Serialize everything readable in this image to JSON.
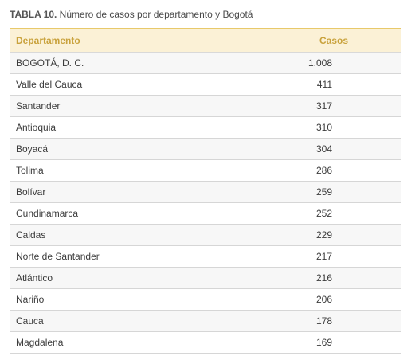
{
  "caption": {
    "label": "TABLA 10.",
    "text": " Número de casos por departamento y Bogotá"
  },
  "table": {
    "headers": {
      "department": "Departamento",
      "cases": "Casos"
    },
    "rows": [
      {
        "department": "BOGOTÁ, D. C.",
        "cases": "1.008"
      },
      {
        "department": "Valle del Cauca",
        "cases": "411"
      },
      {
        "department": "Santander",
        "cases": "317"
      },
      {
        "department": "Antioquia",
        "cases": "310"
      },
      {
        "department": "Boyacá",
        "cases": "304"
      },
      {
        "department": "Tolima",
        "cases": "286"
      },
      {
        "department": "Bolívar",
        "cases": "259"
      },
      {
        "department": "Cundinamarca",
        "cases": "252"
      },
      {
        "department": "Caldas",
        "cases": "229"
      },
      {
        "department": "Norte de Santander",
        "cases": "217"
      },
      {
        "department": "Atlántico",
        "cases": "216"
      },
      {
        "department": "Nariño",
        "cases": "206"
      },
      {
        "department": "Cauca",
        "cases": "178"
      },
      {
        "department": "Magdalena",
        "cases": "169"
      }
    ]
  },
  "colors": {
    "header_text": "#c9a23c",
    "header_bg": "#fbf1d6",
    "header_rule": "#e8c96a"
  }
}
